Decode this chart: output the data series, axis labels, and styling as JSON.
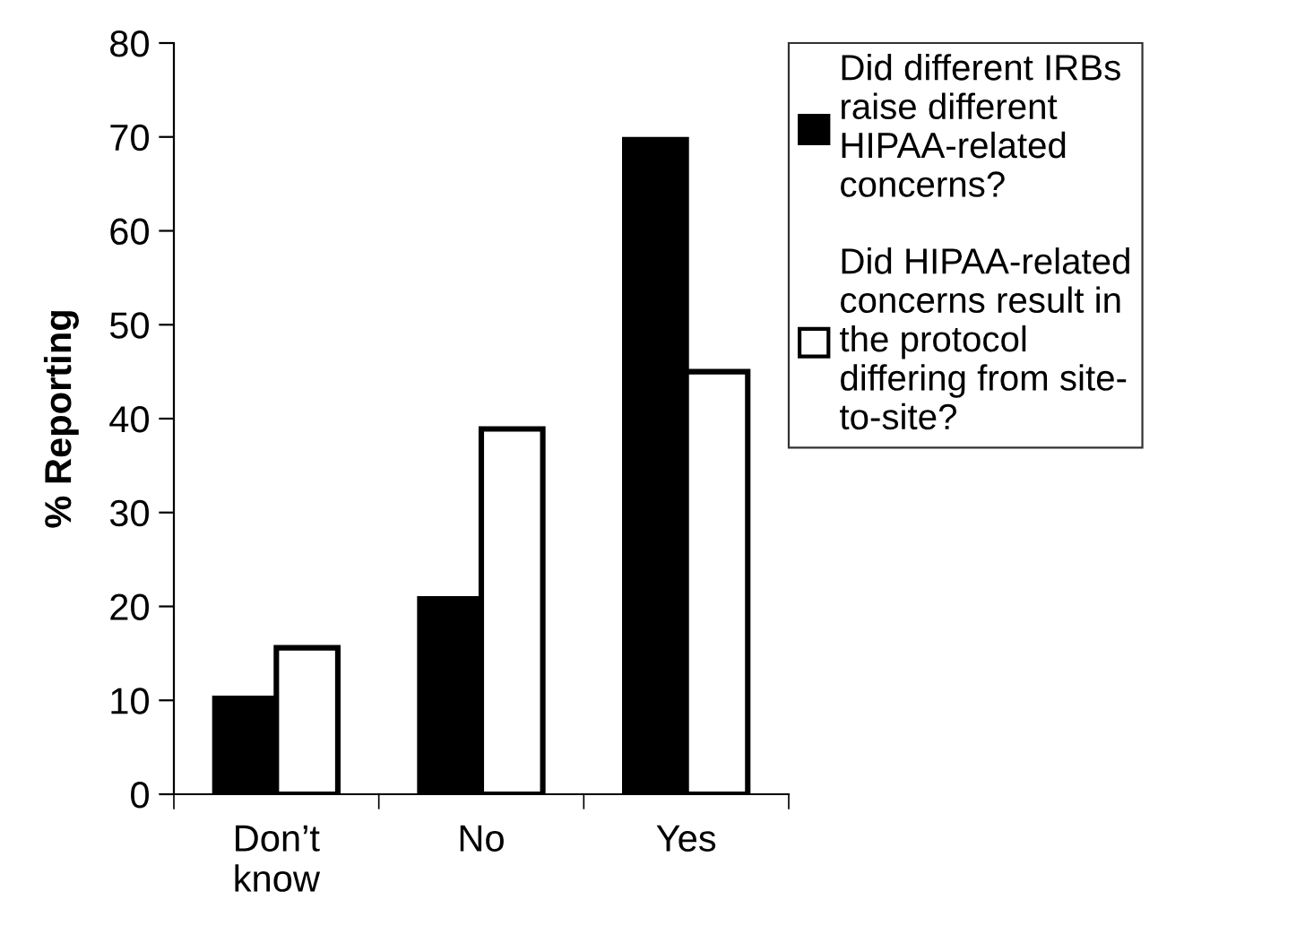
{
  "chart_data": {
    "type": "bar",
    "ylabel": "% Reporting",
    "categories": [
      "Don’t\nknow",
      "No",
      "Yes"
    ],
    "series": [
      {
        "name": "Did different IRBs\nraise different\nHIPAA-related\nconcerns?",
        "color": "#000000",
        "values": [
          10.2,
          20.8,
          69.7
        ]
      },
      {
        "name": "Did HIPAA-related\nconcerns result in\nthe protocol\ndiffering from site-\nto-site?",
        "color": "#ffffff",
        "values": [
          15.6,
          38.9,
          45
        ]
      }
    ],
    "ylim": [
      0,
      80
    ],
    "yticks": [
      0,
      10,
      20,
      30,
      40,
      50,
      60,
      70,
      80
    ],
    "grid": false,
    "legend": "right"
  }
}
